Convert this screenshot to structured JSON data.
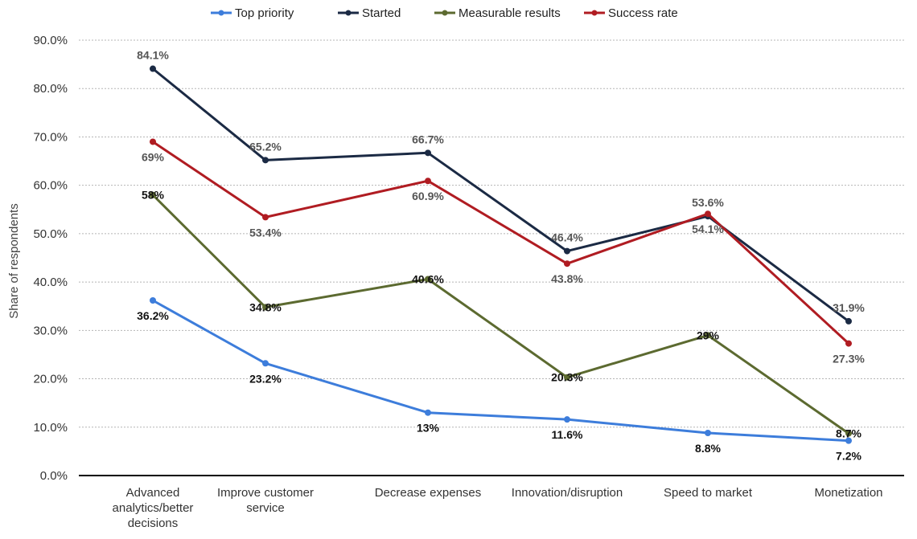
{
  "chart_data": {
    "type": "line",
    "ylabel": "Share of respondents",
    "xlabel": "",
    "ylim": [
      0,
      90
    ],
    "y_ticks": [
      "0.0%",
      "10.0%",
      "20.0%",
      "30.0%",
      "40.0%",
      "50.0%",
      "60.0%",
      "70.0%",
      "80.0%",
      "90.0%"
    ],
    "grid": true,
    "legend_position": "top-center",
    "categories": [
      [
        "Advanced",
        "analytics/better",
        "decisions"
      ],
      [
        "Improve customer",
        "service"
      ],
      [
        "Decrease expenses"
      ],
      [
        "Innovation/disruption"
      ],
      [
        "Speed to market"
      ],
      [
        "Monetization"
      ]
    ],
    "series": [
      {
        "name": "Top priority",
        "color": "#3d7ddb",
        "values": [
          36.2,
          23.2,
          13,
          11.6,
          8.8,
          7.2
        ],
        "labels": [
          "36.2%",
          "23.2%",
          "13%",
          "11.6%",
          "8.8%",
          "7.2%"
        ],
        "label_color": "#111111",
        "label_pos": [
          "below",
          "below",
          "below",
          "below",
          "below",
          "below"
        ]
      },
      {
        "name": "Started",
        "color": "#1b2a44",
        "values": [
          84.1,
          65.2,
          66.7,
          46.4,
          53.6,
          31.9
        ],
        "labels": [
          "84.1%",
          "65.2%",
          "66.7%",
          "46.4%",
          "53.6%",
          "31.9%"
        ],
        "label_color": "#555555",
        "label_pos": [
          "above",
          "above",
          "above",
          "above",
          "above",
          "above"
        ]
      },
      {
        "name": "Measurable results",
        "color": "#5c6a30",
        "values": [
          58,
          34.8,
          40.6,
          20.3,
          29,
          8.7
        ],
        "labels": [
          "58%",
          "34.8%",
          "40.6%",
          "20.3%",
          "29%",
          "8.7%"
        ],
        "label_color": "#111111",
        "label_pos": [
          "center",
          "center",
          "center",
          "center",
          "center",
          "center"
        ]
      },
      {
        "name": "Success rate",
        "color": "#b01c22",
        "values": [
          69,
          53.4,
          60.9,
          43.8,
          54.1,
          27.3
        ],
        "labels": [
          "69%",
          "53.4%",
          "60.9%",
          "43.8%",
          "54.1%",
          "27.3%"
        ],
        "label_color": "#555555",
        "label_pos": [
          "below",
          "below",
          "below",
          "below",
          "below",
          "below"
        ]
      }
    ]
  }
}
